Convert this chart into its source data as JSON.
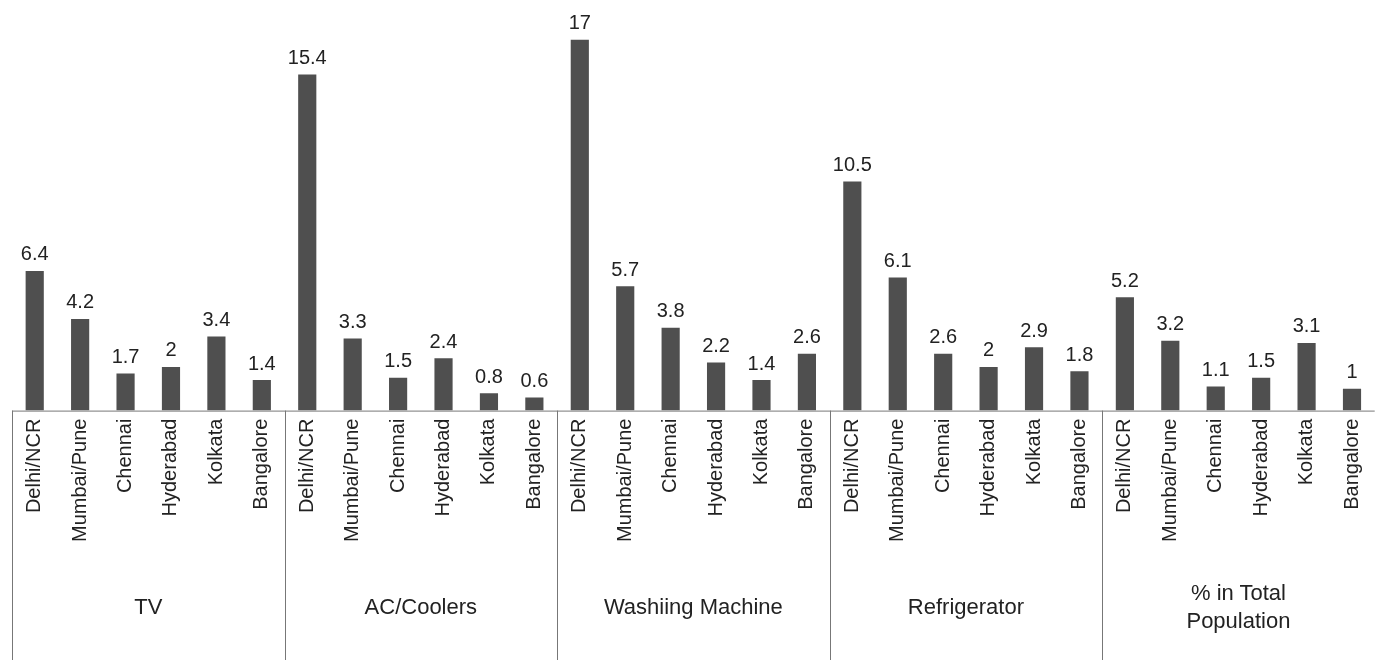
{
  "chart_data": {
    "type": "bar",
    "categories": [
      "Delhi/NCR",
      "Mumbai/Pune",
      "Chennai",
      "Hyderabad",
      "Kolkata",
      "Bangalore",
      "Delhi/NCR",
      "Mumbai/Pune",
      "Chennai",
      "Hyderabad",
      "Kolkata",
      "Bangalore",
      "Delhi/NCR",
      "Mumbai/Pune",
      "Chennai",
      "Hyderabad",
      "Kolkata",
      "Bangalore",
      "Delhi/NCR",
      "Mumbai/Pune",
      "Chennai",
      "Hyderabad",
      "Kolkata",
      "Bangalore",
      "Delhi/NCR",
      "Mumbai/Pune",
      "Chennai",
      "Hyderabad",
      "Kolkata",
      "Bangalore"
    ],
    "values": [
      6.4,
      4.2,
      1.7,
      2,
      3.4,
      1.4,
      15.4,
      3.3,
      1.5,
      2.4,
      0.8,
      0.6,
      17,
      5.7,
      3.8,
      2.2,
      1.4,
      2.6,
      10.5,
      6.1,
      2.6,
      2,
      2.9,
      1.8,
      5.2,
      3.2,
      1.1,
      1.5,
      3.1,
      1
    ],
    "color": "#4f4f4f",
    "data_labels": true,
    "tick_labels": "x",
    "annotations": [
      "TV",
      "AC/Coolers",
      "Washiing Machine",
      "Refrigerator",
      "% in Total Population"
    ]
  }
}
